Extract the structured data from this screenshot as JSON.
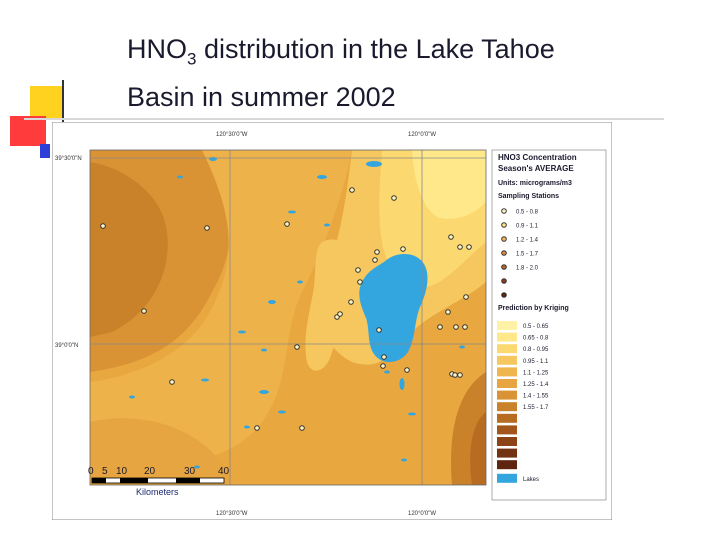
{
  "slide": {
    "title_prefix": "HNO",
    "title_sub": "3",
    "title_line1_rest": " distribution in the Lake Tahoe",
    "title_line2": "Basin in summer 2002"
  },
  "map": {
    "graticule": {
      "top_labels": [
        "120°30'0\"W",
        "120°0'0\"W"
      ],
      "bottom_labels": [
        "120°30'0\"W",
        "120°0'0\"W"
      ],
      "left_labels": [
        "39°30'0\"N",
        "39°0'0\"N"
      ]
    },
    "scale_bar": {
      "ticks": [
        "0",
        "5",
        "10",
        "20",
        "30",
        "40"
      ],
      "unit": "Kilometers"
    },
    "legend": {
      "title_line1": "HNO3 Concentration",
      "title_line2": "Season's AVERAGE",
      "units": "Units: micrograms/m3",
      "stations_heading": "Sampling Stations",
      "station_classes": [
        "0.5 - 0.8",
        "0.9 - 1.1",
        "1.2 - 1.4",
        "1.5 - 1.7",
        "1.8 - 2.0",
        "",
        ""
      ],
      "kriging_heading": "Prediction by Kriging",
      "kriging_classes": [
        "0.5 - 0.65",
        "0.65 - 0.8",
        "0.8 - 0.95",
        "0.95 - 1.1",
        "1.1 - 1.25",
        "1.25 - 1.4",
        "1.4 - 1.55",
        "1.55 - 1.7",
        "",
        "",
        "",
        "",
        ""
      ],
      "kriging_colors": [
        "#fff1a6",
        "#ffe88a",
        "#fbd870",
        "#f6c75e",
        "#f0b64e",
        "#e6a540",
        "#d99334",
        "#c9812a",
        "#b86c22",
        "#a2561c",
        "#8c4416",
        "#733312",
        "#5e240e"
      ],
      "lakes_label": "Lakes",
      "lake_color": "#33a6e0"
    }
  }
}
